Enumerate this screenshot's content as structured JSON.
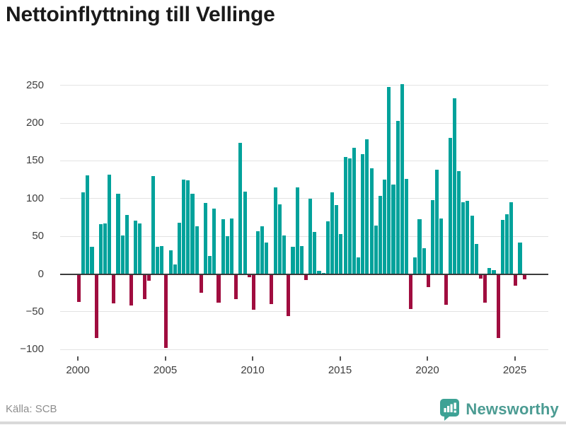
{
  "title": "Nettoinflyttning till Vellinge",
  "footer": {
    "source": "Källa: SCB",
    "brand": "Newsworthy"
  },
  "colors": {
    "positive": "#00a29b",
    "negative": "#a00d3f",
    "grid": "#e3e3e3",
    "zero_axis": "#3b3b3b",
    "tick_text": "#3d3d3d",
    "title_text": "#1a1a1a",
    "source_text": "#8e8e8e",
    "brand_icon": "#3da295",
    "brand_text": "#4c9c93"
  },
  "chart_data": {
    "type": "bar",
    "title": "Nettoinflyttning till Vellinge",
    "xlabel": "",
    "ylabel": "",
    "start_period": "2000 Q1",
    "end_period": "2025 Q3",
    "frequency": "quarterly",
    "grid": true,
    "legend": false,
    "ylim": [
      -110,
      265
    ],
    "y_ticks": [
      250,
      200,
      150,
      100,
      50,
      0,
      -50,
      -100
    ],
    "x_tick_labels": [
      "2000",
      "2005",
      "2010",
      "2015",
      "2020",
      "2025"
    ],
    "values": [
      -37,
      108,
      131,
      36,
      -85,
      66,
      67,
      132,
      -39,
      106,
      51,
      78,
      -42,
      71,
      67,
      -33,
      -9,
      130,
      36,
      37,
      -98,
      31,
      13,
      68,
      125,
      124,
      106,
      63,
      -25,
      94,
      24,
      87,
      -38,
      73,
      50,
      74,
      -33,
      174,
      109,
      -4,
      -47,
      57,
      63,
      42,
      -40,
      115,
      92,
      51,
      -56,
      36,
      115,
      37,
      -8,
      100,
      56,
      4,
      1,
      70,
      108,
      91,
      53,
      155,
      153,
      167,
      22,
      159,
      179,
      140,
      64,
      104,
      125,
      248,
      119,
      203,
      252,
      126,
      -46,
      22,
      73,
      34,
      -17,
      98,
      138,
      74,
      -41,
      180,
      233,
      136,
      95,
      97,
      77,
      40,
      -6,
      -38,
      8,
      5,
      -85,
      72,
      79,
      95,
      -15,
      42,
      -7
    ]
  }
}
